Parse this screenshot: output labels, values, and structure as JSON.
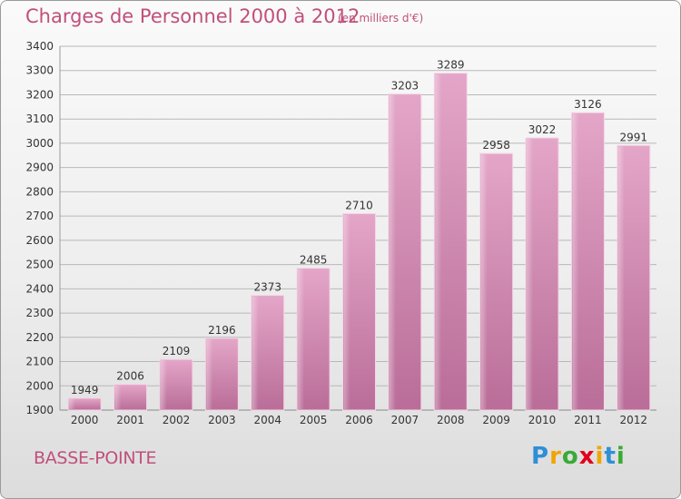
{
  "chart_data": {
    "type": "bar",
    "title": "Charges de Personnel 2000 à 2012",
    "subtitle": "(en milliers d'€)",
    "categories": [
      "2000",
      "2001",
      "2002",
      "2003",
      "2004",
      "2005",
      "2006",
      "2007",
      "2008",
      "2009",
      "2010",
      "2011",
      "2012"
    ],
    "values": [
      1949,
      2006,
      2109,
      2196,
      2373,
      2485,
      2710,
      3203,
      3289,
      2958,
      3022,
      3126,
      2991
    ],
    "xlabel": "",
    "ylabel": "",
    "ylim": [
      1900,
      3400
    ],
    "yticks": [
      1900,
      2000,
      2100,
      2200,
      2300,
      2400,
      2500,
      2600,
      2700,
      2800,
      2900,
      3000,
      3100,
      3200,
      3300,
      3400
    ],
    "grid": true,
    "bar_color": "#d98cb6",
    "grid_color": "#b8b8b8"
  },
  "commune": "BASSE-POINTE",
  "logo": {
    "letters": [
      "P",
      "r",
      "o",
      "x",
      "i",
      "t",
      "i"
    ],
    "colors": [
      "#2f8fd6",
      "#f0a500",
      "#3aaa35",
      "#e2001a",
      "#f0a500",
      "#2f8fd6",
      "#3aaa35"
    ]
  }
}
